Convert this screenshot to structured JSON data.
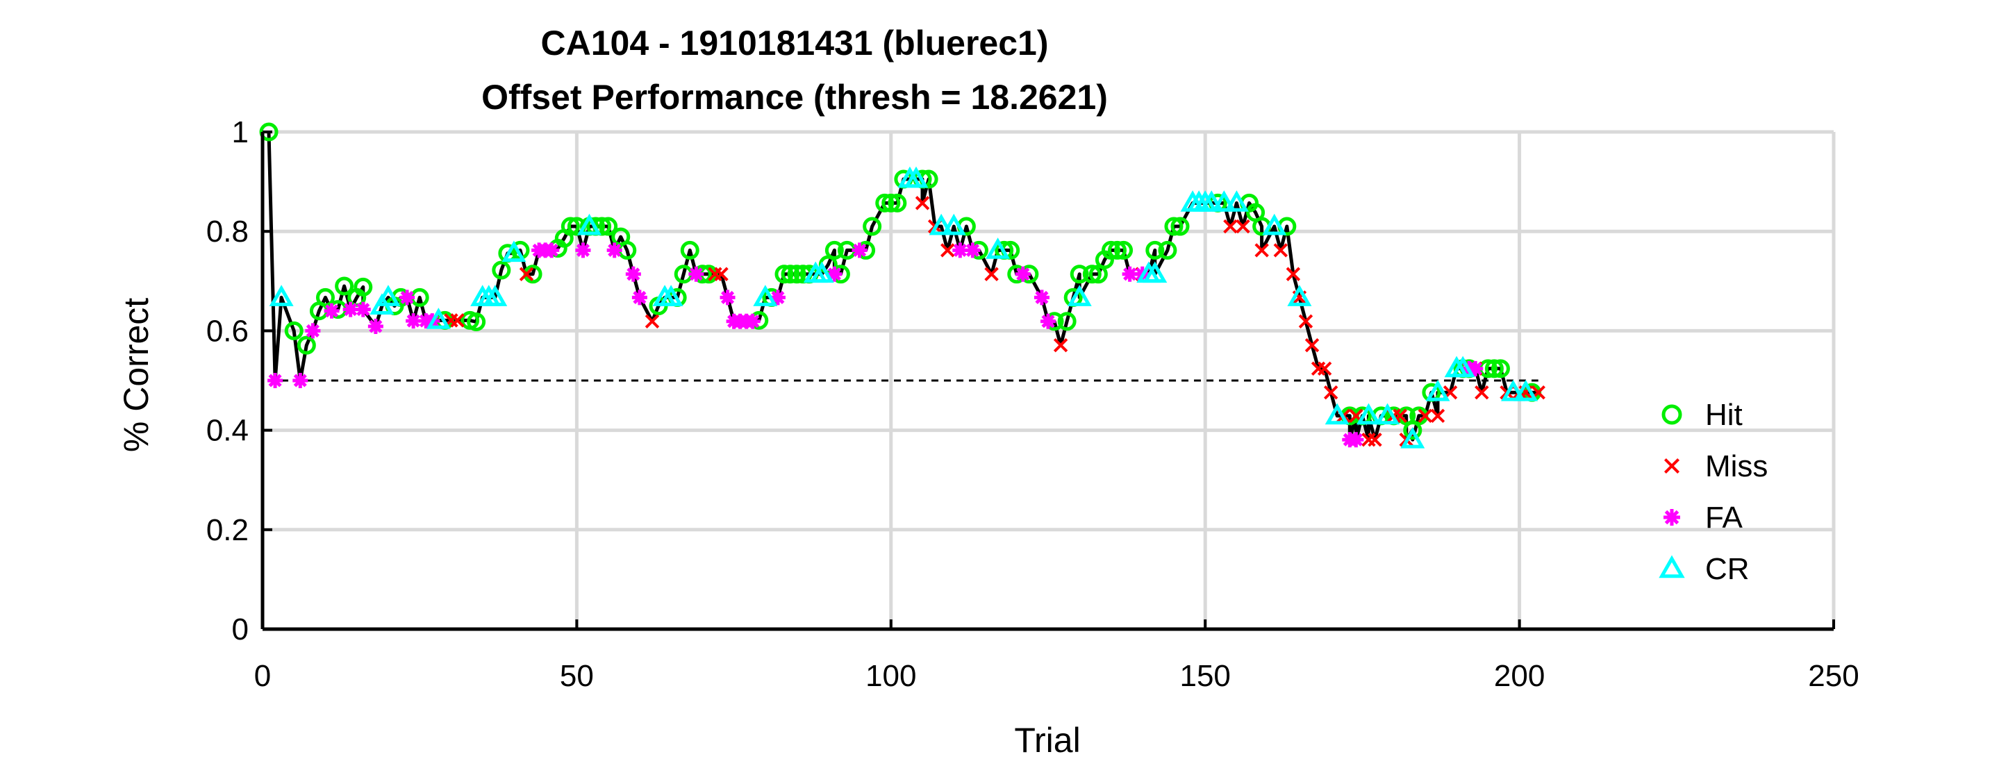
{
  "chart_data": {
    "type": "line",
    "title": "CA104 - 1910181431 (bluerec1)",
    "subtitle": "Offset Performance (thresh = 18.2621)",
    "xlabel": "Trial",
    "ylabel": "% Correct",
    "xlim": [
      0,
      250
    ],
    "ylim": [
      0,
      1
    ],
    "xticks": [
      "0",
      "50",
      "100",
      "150",
      "200",
      "250"
    ],
    "yticks": [
      "0",
      "0.2",
      "0.4",
      "0.6",
      "0.8",
      "1"
    ],
    "grid": true,
    "legend_position": "right",
    "chance_level": 0.5,
    "line_color": "#000000",
    "series": [
      {
        "name": "Hit",
        "marker": "circle",
        "color": "#00ee00",
        "x": [
          1,
          5,
          7,
          9,
          10,
          12,
          13,
          15,
          16,
          21,
          22,
          25,
          29,
          33,
          34,
          38,
          39,
          41,
          43,
          47,
          48,
          49,
          50,
          52,
          53,
          54,
          55,
          57,
          58,
          63,
          66,
          67,
          68,
          70,
          71,
          79,
          81,
          83,
          84,
          85,
          86,
          87,
          90,
          91,
          92,
          93,
          96,
          97,
          99,
          100,
          101,
          102,
          105,
          106,
          112,
          114,
          118,
          119,
          120,
          122,
          126,
          128,
          129,
          130,
          132,
          133,
          134,
          135,
          136,
          137,
          142,
          144,
          145,
          146,
          152,
          157,
          158,
          159,
          163,
          173,
          175,
          178,
          180,
          182,
          183,
          184,
          186,
          191,
          192,
          195,
          196,
          197,
          202
        ],
        "y": [
          1.0,
          0.6,
          0.571,
          0.64,
          0.667,
          0.643,
          0.69,
          0.667,
          0.688,
          0.65,
          0.667,
          0.667,
          0.621,
          0.621,
          0.618,
          0.722,
          0.756,
          0.762,
          0.714,
          0.766,
          0.786,
          0.81,
          0.81,
          0.81,
          0.81,
          0.81,
          0.81,
          0.789,
          0.762,
          0.65,
          0.667,
          0.714,
          0.762,
          0.714,
          0.714,
          0.621,
          0.667,
          0.714,
          0.714,
          0.714,
          0.714,
          0.714,
          0.733,
          0.762,
          0.714,
          0.762,
          0.762,
          0.81,
          0.857,
          0.857,
          0.857,
          0.905,
          0.905,
          0.905,
          0.81,
          0.762,
          0.762,
          0.762,
          0.714,
          0.714,
          0.619,
          0.619,
          0.667,
          0.714,
          0.714,
          0.714,
          0.743,
          0.762,
          0.762,
          0.762,
          0.762,
          0.762,
          0.81,
          0.81,
          0.857,
          0.857,
          0.838,
          0.81,
          0.81,
          0.429,
          0.429,
          0.429,
          0.429,
          0.429,
          0.4,
          0.429,
          0.476,
          0.524,
          0.524,
          0.524,
          0.524,
          0.524,
          0.476
        ]
      },
      {
        "name": "Miss",
        "marker": "x",
        "color": "#ff0000",
        "x": [
          30,
          31,
          42,
          62,
          72,
          73,
          105,
          107,
          109,
          116,
          127,
          140,
          154,
          156,
          159,
          162,
          164,
          165,
          166,
          167,
          168,
          169,
          170,
          172,
          174,
          176,
          177,
          180,
          181,
          182,
          185,
          187,
          189,
          193,
          194,
          198,
          200,
          201,
          203
        ],
        "y": [
          0.621,
          0.621,
          0.714,
          0.619,
          0.714,
          0.714,
          0.857,
          0.81,
          0.762,
          0.714,
          0.571,
          0.714,
          0.81,
          0.81,
          0.762,
          0.762,
          0.714,
          0.667,
          0.619,
          0.571,
          0.524,
          0.524,
          0.476,
          0.429,
          0.429,
          0.381,
          0.381,
          0.429,
          0.429,
          0.381,
          0.429,
          0.429,
          0.476,
          0.524,
          0.476,
          0.476,
          0.476,
          0.476,
          0.476
        ]
      },
      {
        "name": "FA",
        "marker": "asterisk",
        "color": "#ff00ff",
        "x": [
          2,
          6,
          8,
          11,
          14,
          16,
          18,
          23,
          24,
          26,
          27,
          44,
          45,
          46,
          51,
          56,
          59,
          60,
          69,
          74,
          75,
          76,
          77,
          78,
          82,
          91,
          95,
          111,
          113,
          121,
          124,
          125,
          138,
          140,
          173,
          174,
          192,
          193
        ],
        "y": [
          0.5,
          0.5,
          0.6,
          0.64,
          0.643,
          0.643,
          0.609,
          0.667,
          0.62,
          0.62,
          0.62,
          0.762,
          0.762,
          0.762,
          0.762,
          0.762,
          0.714,
          0.667,
          0.714,
          0.667,
          0.619,
          0.619,
          0.619,
          0.619,
          0.667,
          0.714,
          0.762,
          0.762,
          0.762,
          0.714,
          0.667,
          0.619,
          0.714,
          0.714,
          0.381,
          0.381,
          0.524,
          0.524
        ]
      },
      {
        "name": "CR",
        "marker": "triangle",
        "color": "#00ffff",
        "x": [
          3,
          19,
          20,
          28,
          35,
          36,
          37,
          40,
          52,
          64,
          65,
          80,
          88,
          89,
          103,
          104,
          108,
          110,
          117,
          130,
          141,
          142,
          148,
          149,
          150,
          151,
          153,
          155,
          161,
          165,
          171,
          176,
          179,
          183,
          187,
          190,
          191,
          199,
          201
        ],
        "y": [
          0.667,
          0.65,
          0.667,
          0.621,
          0.667,
          0.667,
          0.667,
          0.756,
          0.81,
          0.667,
          0.667,
          0.667,
          0.714,
          0.714,
          0.905,
          0.905,
          0.81,
          0.81,
          0.762,
          0.667,
          0.714,
          0.714,
          0.857,
          0.857,
          0.857,
          0.857,
          0.857,
          0.857,
          0.81,
          0.667,
          0.429,
          0.429,
          0.429,
          0.381,
          0.476,
          0.524,
          0.524,
          0.476,
          0.476
        ]
      }
    ]
  }
}
